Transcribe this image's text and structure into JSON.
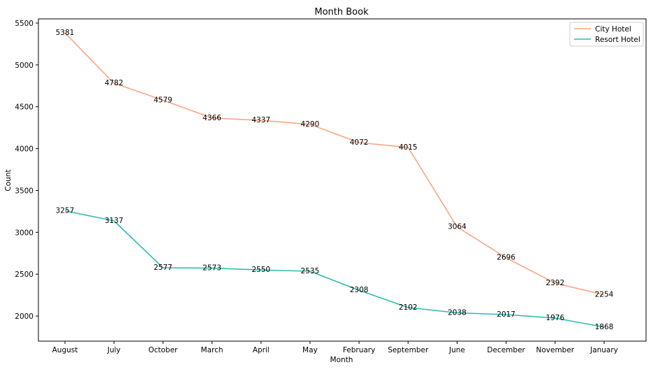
{
  "chart_data": {
    "type": "line",
    "title": "Month Book",
    "xlabel": "Month",
    "ylabel": "Count",
    "categories": [
      "August",
      "July",
      "October",
      "March",
      "April",
      "May",
      "February",
      "September",
      "June",
      "December",
      "November",
      "January"
    ],
    "series": [
      {
        "name": "City Hotel",
        "color": "#fca582",
        "values": [
          5381,
          4782,
          4579,
          4366,
          4337,
          4290,
          4072,
          4015,
          3064,
          2696,
          2392,
          2254
        ]
      },
      {
        "name": "Resort Hotel",
        "color": "#2ebcb2",
        "values": [
          3257,
          3137,
          2577,
          2573,
          2550,
          2535,
          2308,
          2102,
          2038,
          2017,
          1976,
          1868
        ]
      }
    ],
    "yticks": [
      2000,
      2500,
      3000,
      3500,
      4000,
      4500,
      5000,
      5500
    ],
    "ylim": [
      1700,
      5550
    ],
    "grid": false,
    "legend_position": "top-right"
  }
}
